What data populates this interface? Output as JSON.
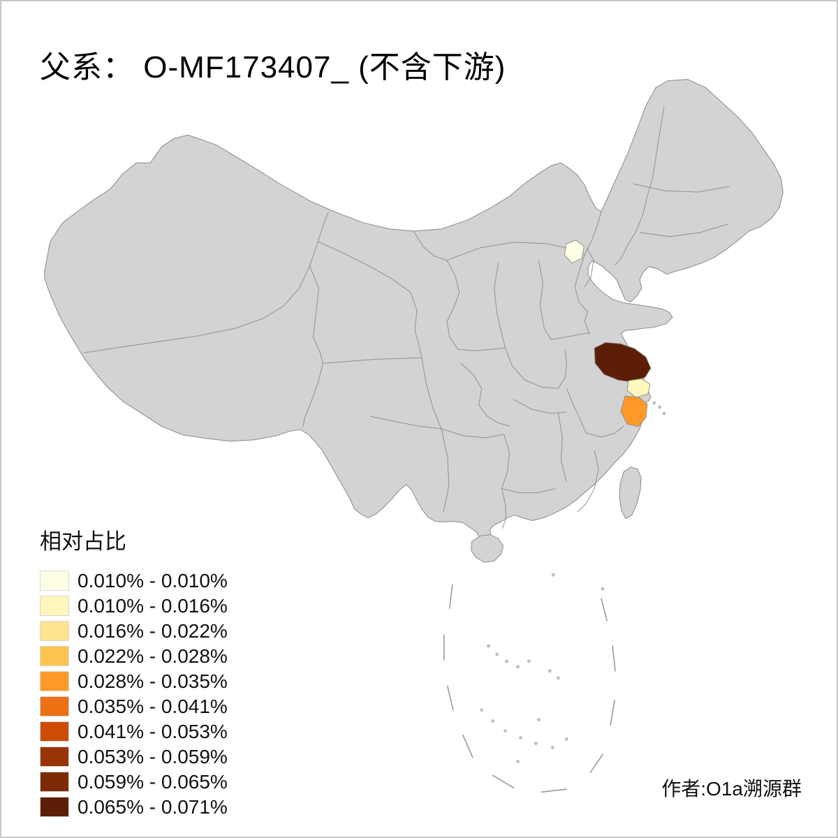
{
  "page": {
    "background": "#ffffff",
    "frame_color": "#c8c8c8"
  },
  "title": {
    "text": "父系： O-MF173407_ (不含下游)"
  },
  "legend": {
    "title": "相对占比",
    "bins": [
      {
        "label": "0.010% - 0.010%",
        "color": "#FFFFE5"
      },
      {
        "label": "0.010% - 0.016%",
        "color": "#FFF7BC"
      },
      {
        "label": "0.016% - 0.022%",
        "color": "#FEE391"
      },
      {
        "label": "0.022% - 0.028%",
        "color": "#FEC44F"
      },
      {
        "label": "0.028% - 0.035%",
        "color": "#FE9929"
      },
      {
        "label": "0.035% - 0.041%",
        "color": "#EC7014"
      },
      {
        "label": "0.041% - 0.053%",
        "color": "#CC4C02"
      },
      {
        "label": "0.053% - 0.059%",
        "color": "#993404"
      },
      {
        "label": "0.059% - 0.065%",
        "color": "#7E2B05"
      },
      {
        "label": "0.065% - 0.071%",
        "color": "#5C1F06"
      }
    ]
  },
  "map": {
    "base_fill": "#d3d3d3",
    "border_color": "#8a8a8a",
    "highlighted_regions": [
      {
        "name": "北京",
        "bin_label": "0.010% - 0.010%",
        "color": "#FFFFE5"
      },
      {
        "name": "江苏",
        "bin_label": "0.065% - 0.071%",
        "color": "#5C1F06"
      },
      {
        "name": "上海",
        "bin_label": "0.010% - 0.016%",
        "color": "#FFF7BC"
      },
      {
        "name": "浙江",
        "bin_label": "0.028% - 0.035%",
        "color": "#FE9929"
      }
    ]
  },
  "credit": {
    "text": "作者:O1a溯源群"
  }
}
